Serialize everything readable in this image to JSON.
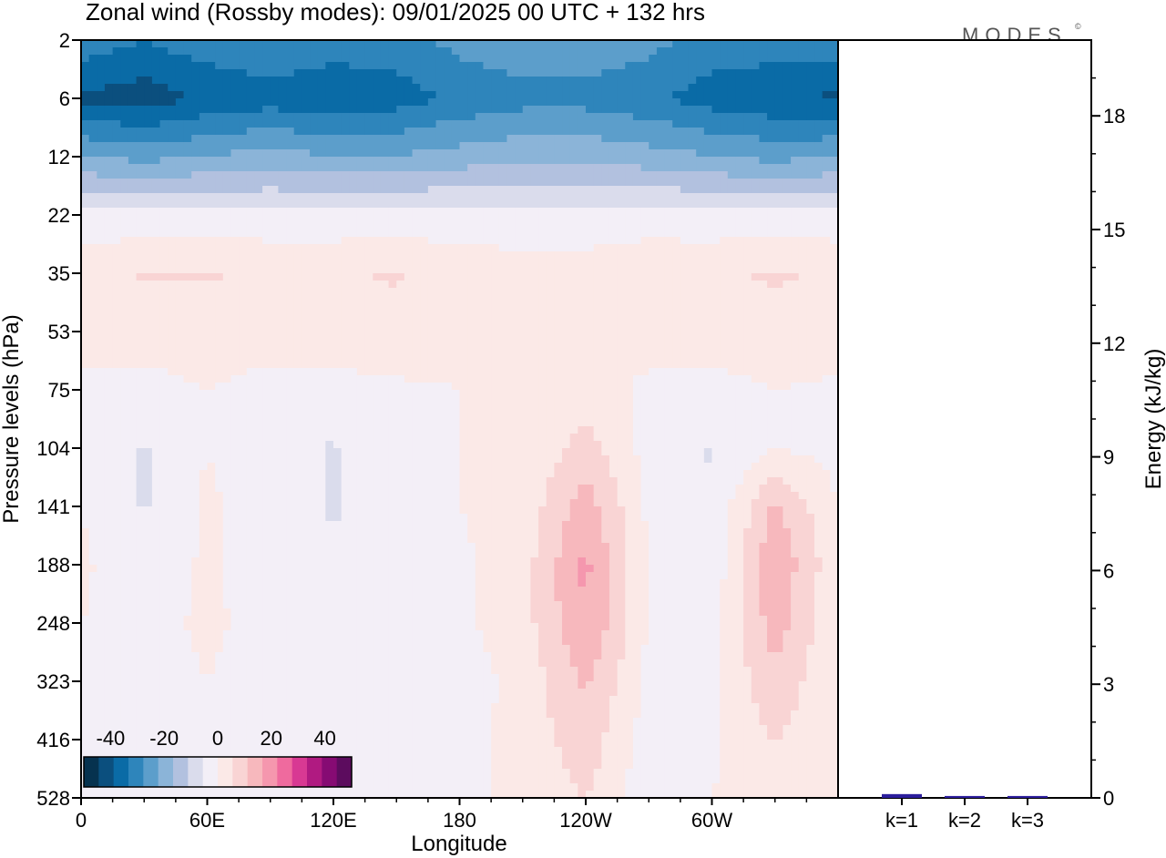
{
  "chart_data": {
    "type": "heatmap",
    "title": "Zonal wind (Rossby modes):  09/01/2025  00 UTC  + 132 hrs",
    "logo": "MODES",
    "logo_mark": "©",
    "xlabel": "Longitude",
    "ylabel": "Pressure levels (hPa)",
    "x_ticks": [
      "0",
      "60E",
      "120E",
      "180",
      "120W",
      "60W"
    ],
    "x_range": [
      0,
      360
    ],
    "y_ticks": [
      "2",
      "6",
      "12",
      "22",
      "35",
      "53",
      "75",
      "104",
      "141",
      "188",
      "248",
      "323",
      "416",
      "528"
    ],
    "colorbar": {
      "ticks": [
        "-40",
        "-20",
        "0",
        "20",
        "40"
      ],
      "range": [
        -50,
        50
      ],
      "colors": [
        "#06324f",
        "#0b4f7e",
        "#0a6ba6",
        "#2e85bb",
        "#5c9ecb",
        "#8bb4d8",
        "#b2c1df",
        "#dadcec",
        "#f3eff7",
        "#fbe9e7",
        "#f9d4d4",
        "#f7b8bd",
        "#f597ae",
        "#ef6a9e",
        "#d83993",
        "#b01a81",
        "#860b73",
        "#5c0c5e"
      ]
    },
    "field": {
      "description": "zonal wind (m/s) vs longitude and pressure level",
      "levels": [
        "2",
        "6",
        "12",
        "22",
        "35",
        "53",
        "75",
        "104",
        "141",
        "188",
        "248",
        "323",
        "416",
        "528"
      ],
      "longitudes": [
        0,
        30,
        60,
        90,
        120,
        150,
        180,
        210,
        240,
        270,
        300,
        330,
        360
      ],
      "values": [
        [
          -30,
          -33,
          -30,
          -28,
          -30,
          -30,
          -26,
          -24,
          -24,
          -26,
          -30,
          -30,
          -30
        ],
        [
          -40,
          -42,
          -38,
          -36,
          -38,
          -36,
          -32,
          -30,
          -30,
          -32,
          -36,
          -38,
          -40
        ],
        [
          -22,
          -24,
          -22,
          -20,
          -22,
          -22,
          -20,
          -18,
          -18,
          -20,
          -22,
          -24,
          -22
        ],
        [
          -4,
          -4,
          -4,
          -4,
          -4,
          -4,
          -3,
          -3,
          -3,
          -3,
          -4,
          -4,
          -4
        ],
        [
          4,
          6,
          6,
          5,
          5,
          6,
          3,
          2,
          2,
          4,
          5,
          6,
          5
        ],
        [
          2,
          3,
          3,
          3,
          3,
          4,
          2,
          1,
          1,
          2,
          3,
          4,
          3
        ],
        [
          -1,
          -2,
          0,
          -2,
          -2,
          -1,
          0,
          0,
          2,
          -1,
          -2,
          0,
          -1
        ],
        [
          -2,
          -6,
          0,
          -3,
          -6,
          -2,
          0,
          0,
          8,
          -2,
          -6,
          0,
          -2
        ],
        [
          0,
          -6,
          1,
          -3,
          -6,
          -2,
          0,
          2,
          14,
          -1,
          -5,
          12,
          0
        ],
        [
          1,
          -4,
          1,
          -3,
          -5,
          -2,
          -1,
          3,
          18,
          -1,
          -4,
          16,
          1
        ],
        [
          0,
          -2,
          1,
          -2,
          -4,
          -2,
          -1,
          3,
          17,
          -1,
          -2,
          14,
          0
        ],
        [
          0,
          -2,
          0,
          -2,
          -2,
          -2,
          -3,
          2,
          12,
          -1,
          -1,
          10,
          0
        ],
        [
          0,
          -4,
          0,
          -2,
          -2,
          -1,
          -2,
          2,
          9,
          -3,
          -1,
          6,
          0
        ],
        [
          0,
          -2,
          0,
          -2,
          -2,
          -1,
          -1,
          1,
          6,
          -4,
          0,
          3,
          0
        ]
      ]
    },
    "bar_panel": {
      "type": "bar",
      "ylabel": "Energy (kJ/kg)",
      "ylim": [
        0,
        20
      ],
      "y_ticks": [
        "0",
        "3",
        "6",
        "9",
        "12",
        "15",
        "18"
      ],
      "categories": [
        "k=1",
        "k=2",
        "k=3"
      ],
      "values": [
        0.1,
        0.05,
        0.05
      ],
      "bar_color": "#2c1e9c"
    }
  }
}
